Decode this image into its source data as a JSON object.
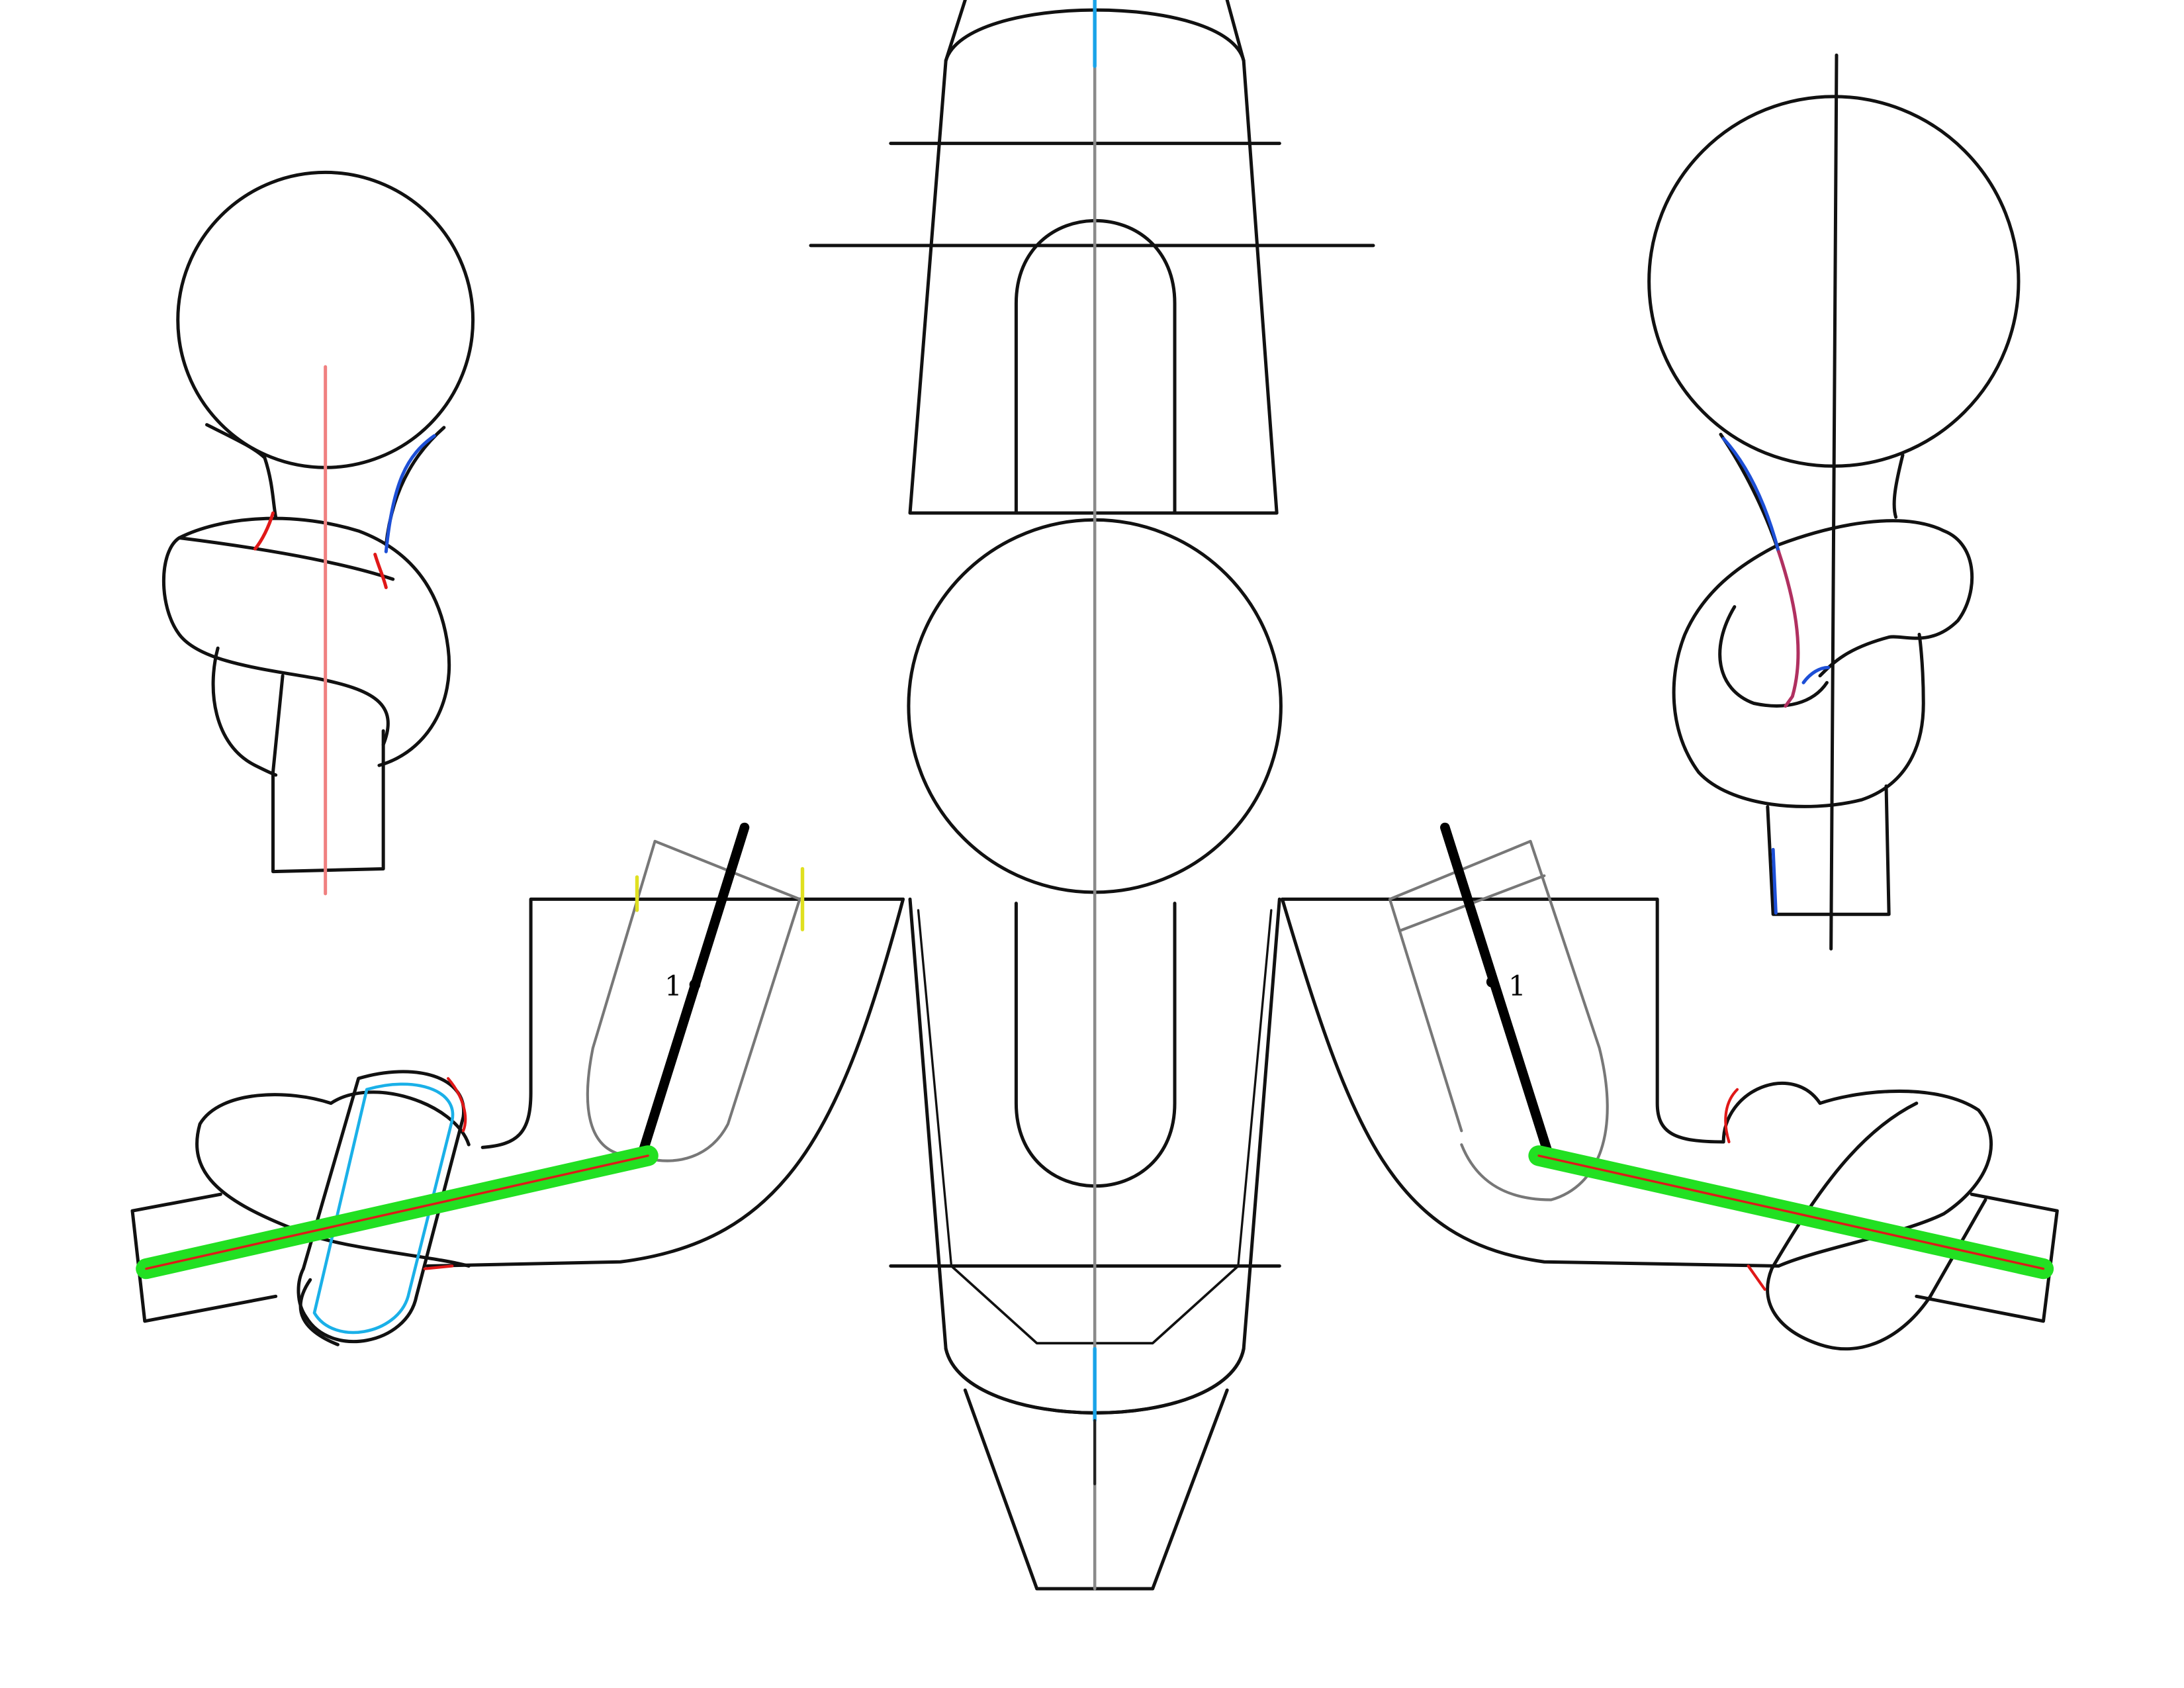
{
  "diagram": {
    "labels": {
      "left_mark": "1",
      "right_mark": "1"
    },
    "colors": {
      "outline": "#111111",
      "centerline": "#8a8a8a",
      "center_accent": "#1aa3e8",
      "guide_red": "#e01818",
      "guide_pink": "#f08080",
      "guide_blue": "#1d4fd6",
      "guide_cyan": "#1ab0e8",
      "guide_green": "#22e022",
      "guide_yellow": "#e0e020",
      "guide_magenta": "#b03060",
      "guide_grey": "#777777"
    }
  }
}
